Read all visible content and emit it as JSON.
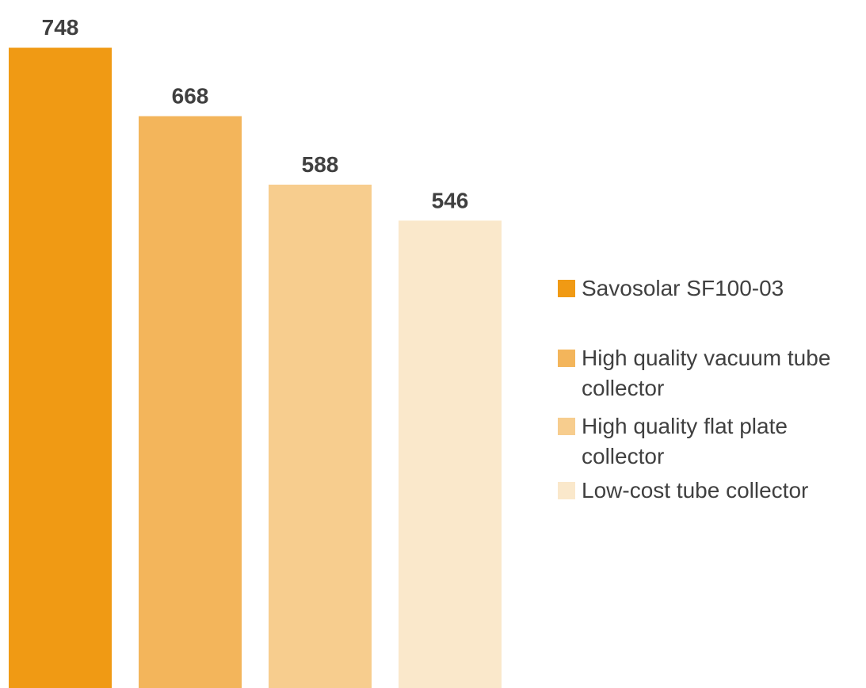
{
  "chart_data": {
    "type": "bar",
    "categories": [
      "Savosolar SF100-03",
      "High quality vacuum tube collector",
      "High quality flat plate collector",
      "Low-cost tube collector"
    ],
    "values": [
      748,
      668,
      588,
      546
    ],
    "data_labels": [
      "748",
      "668",
      "588",
      "546"
    ],
    "ylim": [
      0,
      800
    ],
    "grid": false,
    "legend": {
      "placement": "right",
      "entries": [
        {
          "label": "Savosolar SF100-03",
          "color": "#F09A14"
        },
        {
          "label": "High quality vacuum tube collector",
          "color": "#F3B55B"
        },
        {
          "label": "High quality flat plate collector",
          "color": "#F7CD8E"
        },
        {
          "label": "Low-cost tube collector",
          "color": "#FAE8CB"
        }
      ]
    },
    "colors": [
      "#F09A14",
      "#F3B55B",
      "#F7CD8E",
      "#FAE8CB"
    ],
    "label_color": "#404040"
  }
}
